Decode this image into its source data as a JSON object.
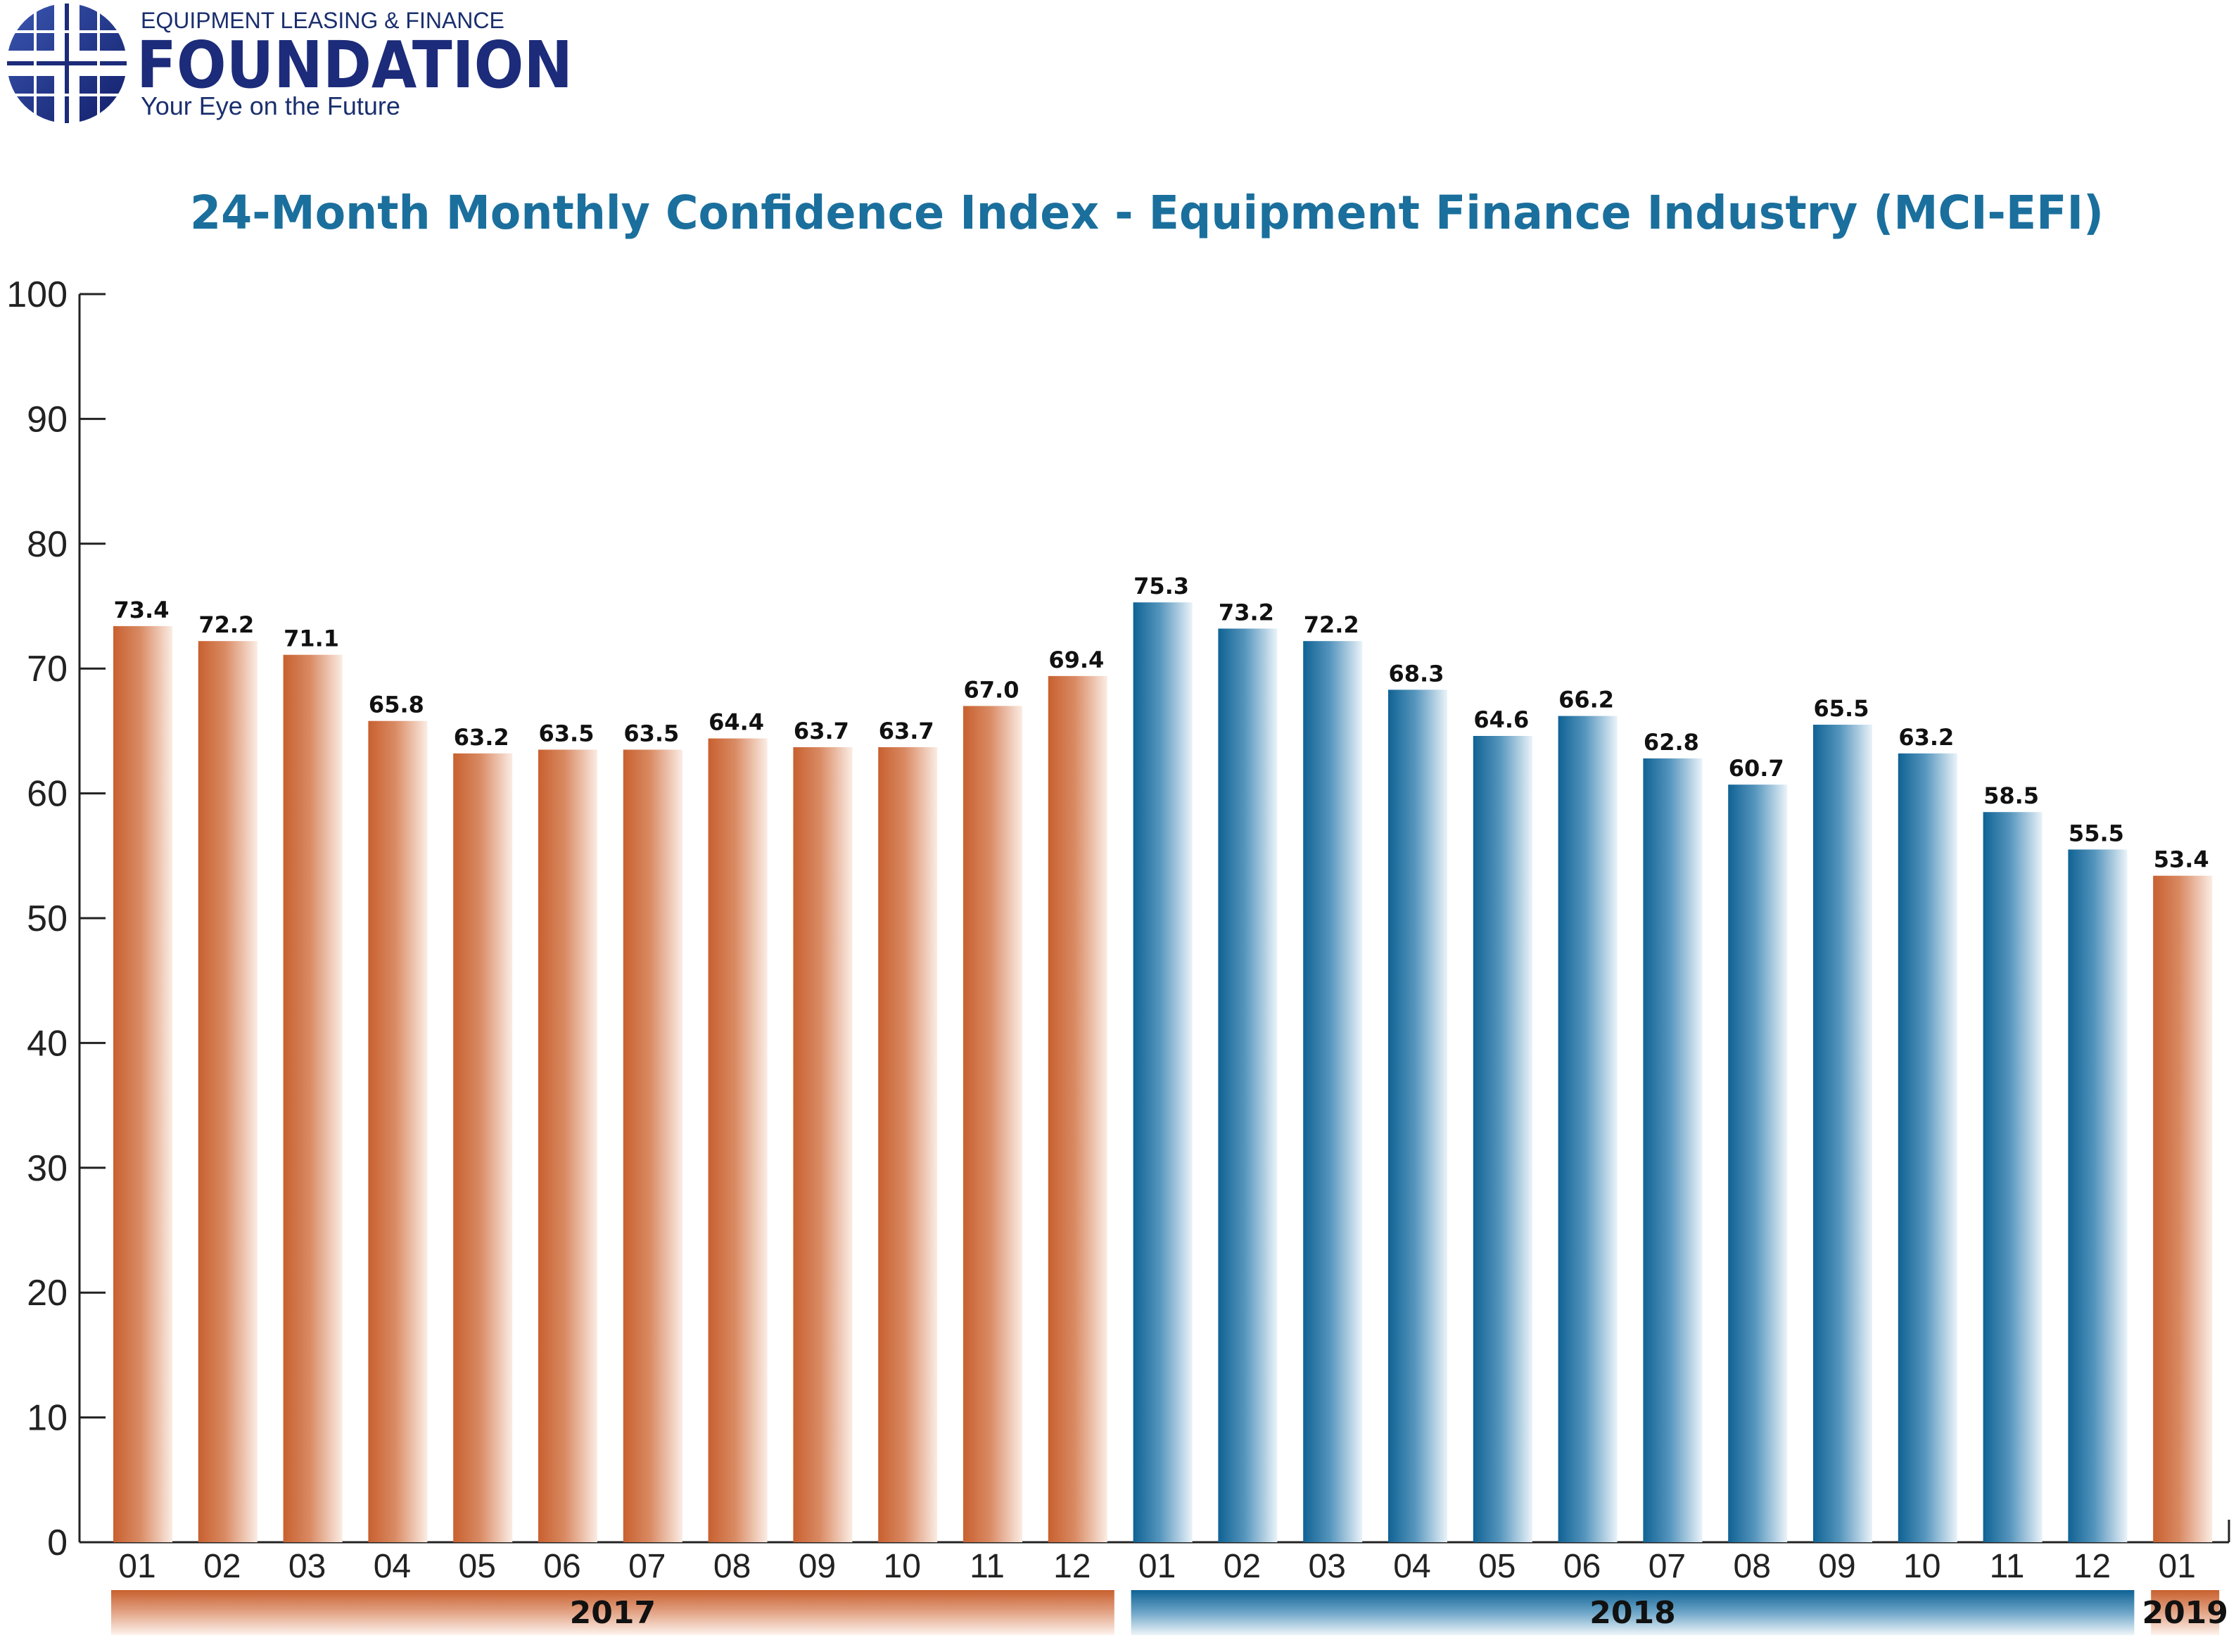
{
  "logo": {
    "line1": "EQUIPMENT LEASING & FINANCE",
    "line2": "FOUNDATION",
    "line3": "Your Eye on the Future"
  },
  "colors": {
    "orange": "#cc6a3e",
    "blue": "#136a9a",
    "title": "#1a6f9d"
  },
  "chart_data": {
    "type": "bar",
    "title": "24-Month Monthly Confidence Index - Equipment Finance Industry (MCI-EFI)",
    "xlabel": "",
    "ylabel": "",
    "ylim": [
      0,
      100
    ],
    "yticks": [
      "0",
      "10",
      "20",
      "30",
      "40",
      "50",
      "60",
      "70",
      "80",
      "90",
      "100"
    ],
    "grid": false,
    "categories": [
      "01",
      "02",
      "03",
      "04",
      "05",
      "06",
      "07",
      "08",
      "09",
      "10",
      "11",
      "12",
      "01",
      "02",
      "03",
      "04",
      "05",
      "06",
      "07",
      "08",
      "09",
      "10",
      "11",
      "12",
      "01"
    ],
    "values": [
      73.4,
      72.2,
      71.1,
      65.8,
      63.2,
      63.5,
      63.5,
      64.4,
      63.7,
      63.7,
      67.0,
      69.4,
      75.3,
      73.2,
      72.2,
      68.3,
      64.6,
      66.2,
      62.8,
      60.7,
      65.5,
      63.2,
      58.5,
      55.5,
      53.4
    ],
    "value_labels": [
      "73.4",
      "72.2",
      "71.1",
      "65.8",
      "63.2",
      "63.5",
      "63.5",
      "64.4",
      "63.7",
      "63.7",
      "67.0",
      "69.4",
      "75.3",
      "73.2",
      "72.2",
      "68.3",
      "64.6",
      "66.2",
      "62.8",
      "60.7",
      "65.5",
      "63.2",
      "58.5",
      "55.5",
      "53.4"
    ],
    "bar_colors": [
      "orange",
      "orange",
      "orange",
      "orange",
      "orange",
      "orange",
      "orange",
      "orange",
      "orange",
      "orange",
      "orange",
      "orange",
      "blue",
      "blue",
      "blue",
      "blue",
      "blue",
      "blue",
      "blue",
      "blue",
      "blue",
      "blue",
      "blue",
      "blue",
      "orange"
    ],
    "years": [
      {
        "label": "2017",
        "start": 0,
        "end": 11,
        "color": "orange"
      },
      {
        "label": "2018",
        "start": 12,
        "end": 23,
        "color": "blue"
      },
      {
        "label": "2019",
        "start": 24,
        "end": 24,
        "color": "orange"
      }
    ]
  }
}
